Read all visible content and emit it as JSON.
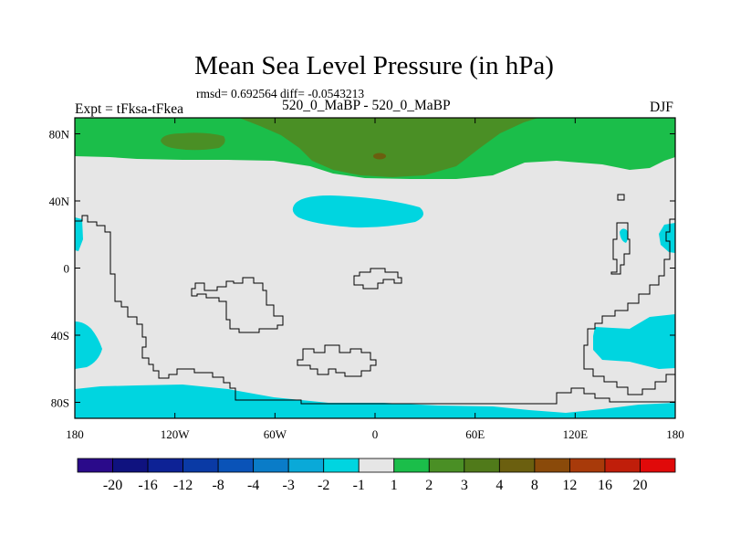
{
  "header": {
    "title": "Mean Sea Level Pressure (in hPa)",
    "stats": "rmsd= 0.692564 diff= -0.0543213",
    "left_label": "Expt = tFksa-tFkea",
    "center_label": "520_0_MaBP - 520_0_MaBP",
    "right_label": "DJF"
  },
  "chart_data": {
    "type": "heatmap",
    "title": "Mean Sea Level Pressure (in hPa)",
    "units": "hPa",
    "season": "DJF",
    "experiment": "tFksa-tFkea",
    "comparison": "520_0_MaBP - 520_0_MaBP",
    "rmsd": 0.692564,
    "diff": -0.0543213,
    "x_ticks": [
      "180",
      "120W",
      "60W",
      "0",
      "60E",
      "120E",
      "180"
    ],
    "y_ticks": [
      "80N",
      "40N",
      "0",
      "40S",
      "80S"
    ],
    "xlim": [
      -180,
      180
    ],
    "ylim": [
      -90,
      90
    ],
    "colorbar": {
      "labels": [
        "-20",
        "-16",
        "-12",
        "-8",
        "-4",
        "-3",
        "-2",
        "-1",
        "1",
        "2",
        "3",
        "4",
        "8",
        "12",
        "16",
        "20"
      ],
      "colors": [
        "#2a0a8a",
        "#0f127f",
        "#0d2295",
        "#0a3aa5",
        "#0a53b8",
        "#0a7cc8",
        "#0aa9d8",
        "#00d5e0",
        "#e6e6e6",
        "#1bbe4a",
        "#4a8f25",
        "#507a1a",
        "#6b5f0f",
        "#8a4a0a",
        "#a83a0a",
        "#c01e0a",
        "#e00a0a"
      ]
    },
    "fill_regions": [
      {
        "name": "arctic-green-band",
        "level": "1 to 2"
      },
      {
        "name": "arctic-olive-core",
        "level": "2 to 3"
      },
      {
        "name": "arctic-brown-spot",
        "level": "4 to 8"
      },
      {
        "name": "n-pacific-cyan",
        "level": "-2 to -1"
      },
      {
        "name": "s-pacific-cyan",
        "level": "-2 to -1"
      },
      {
        "name": "s-indian-cyan",
        "level": "-2 to -1"
      },
      {
        "name": "southern-ocean-cyan",
        "level": "-2 to -1"
      }
    ]
  }
}
